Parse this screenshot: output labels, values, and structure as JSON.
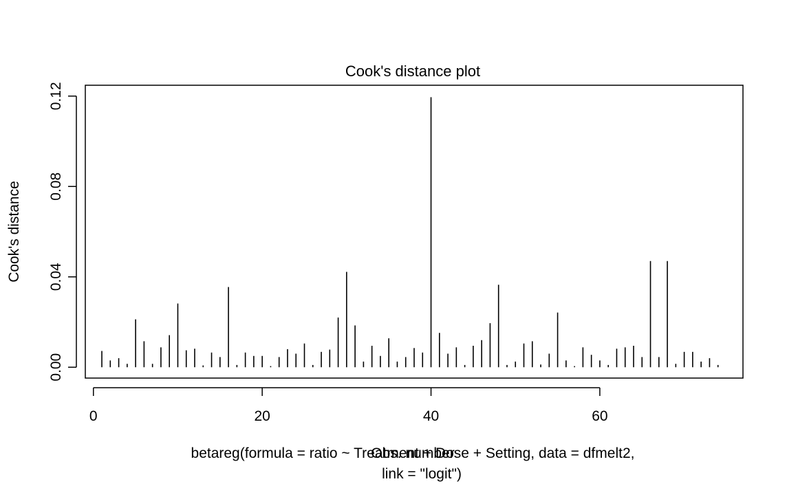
{
  "chart_data": {
    "type": "bar",
    "style": "vertical-spikes",
    "title": "Cook's distance plot",
    "xlabel": "Obs. number",
    "ylabel": "Cook's distance",
    "caption_lines": [
      "betareg(formula = ratio ~ Treatment + Dose + Setting, data = dfmelt2,",
      "link = \"logit\")"
    ],
    "xlim": [
      -0.96,
      76.96
    ],
    "ylim": [
      -0.0048,
      0.1248
    ],
    "xticks": [
      0,
      20,
      40,
      60
    ],
    "xtick_labels": [
      "0",
      "20",
      "40",
      "60"
    ],
    "yticks": [
      0,
      0.04,
      0.08,
      0.12
    ],
    "ytick_labels": [
      "0.00",
      "0.04",
      "0.08",
      "0.12"
    ],
    "grid": false,
    "legend": false,
    "line_color": "#000000",
    "x": [
      1,
      2,
      3,
      4,
      5,
      6,
      7,
      8,
      9,
      10,
      11,
      12,
      13,
      14,
      15,
      16,
      17,
      18,
      19,
      20,
      21,
      22,
      23,
      24,
      25,
      26,
      27,
      28,
      29,
      30,
      31,
      32,
      33,
      34,
      35,
      36,
      37,
      38,
      39,
      40,
      41,
      42,
      43,
      44,
      45,
      46,
      47,
      48,
      49,
      50,
      51,
      52,
      53,
      54,
      55,
      56,
      57,
      58,
      59,
      60,
      61,
      62,
      63,
      64,
      65,
      66,
      67,
      68,
      69,
      70,
      71,
      72,
      73,
      74
    ],
    "values": [
      0.0072,
      0.003,
      0.004,
      0.0015,
      0.0212,
      0.0115,
      0.0015,
      0.0088,
      0.0142,
      0.0282,
      0.0075,
      0.0082,
      0.0008,
      0.0065,
      0.0045,
      0.0355,
      0.001,
      0.0065,
      0.005,
      0.005,
      0.0005,
      0.0045,
      0.008,
      0.006,
      0.0105,
      0.001,
      0.0068,
      0.0078,
      0.022,
      0.0422,
      0.0185,
      0.0025,
      0.0095,
      0.005,
      0.0128,
      0.0025,
      0.0045,
      0.0085,
      0.0065,
      0.1195,
      0.0152,
      0.006,
      0.0088,
      0.001,
      0.0095,
      0.012,
      0.0195,
      0.0365,
      0.001,
      0.0025,
      0.0105,
      0.0115,
      0.0012,
      0.006,
      0.0242,
      0.003,
      0.0005,
      0.0088,
      0.0055,
      0.003,
      0.001,
      0.0082,
      0.0088,
      0.0095,
      0.0045,
      0.047,
      0.0045,
      0.047,
      0.0015,
      0.0068,
      0.0068,
      0.0025,
      0.004,
      0.001
    ]
  }
}
